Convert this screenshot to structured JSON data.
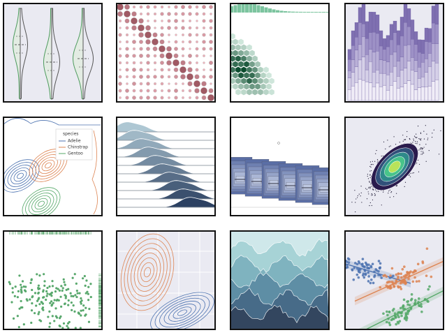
{
  "legend": {
    "title": "species",
    "items": [
      "Adelie",
      "Chinstrap",
      "Gentoo"
    ]
  }
}
